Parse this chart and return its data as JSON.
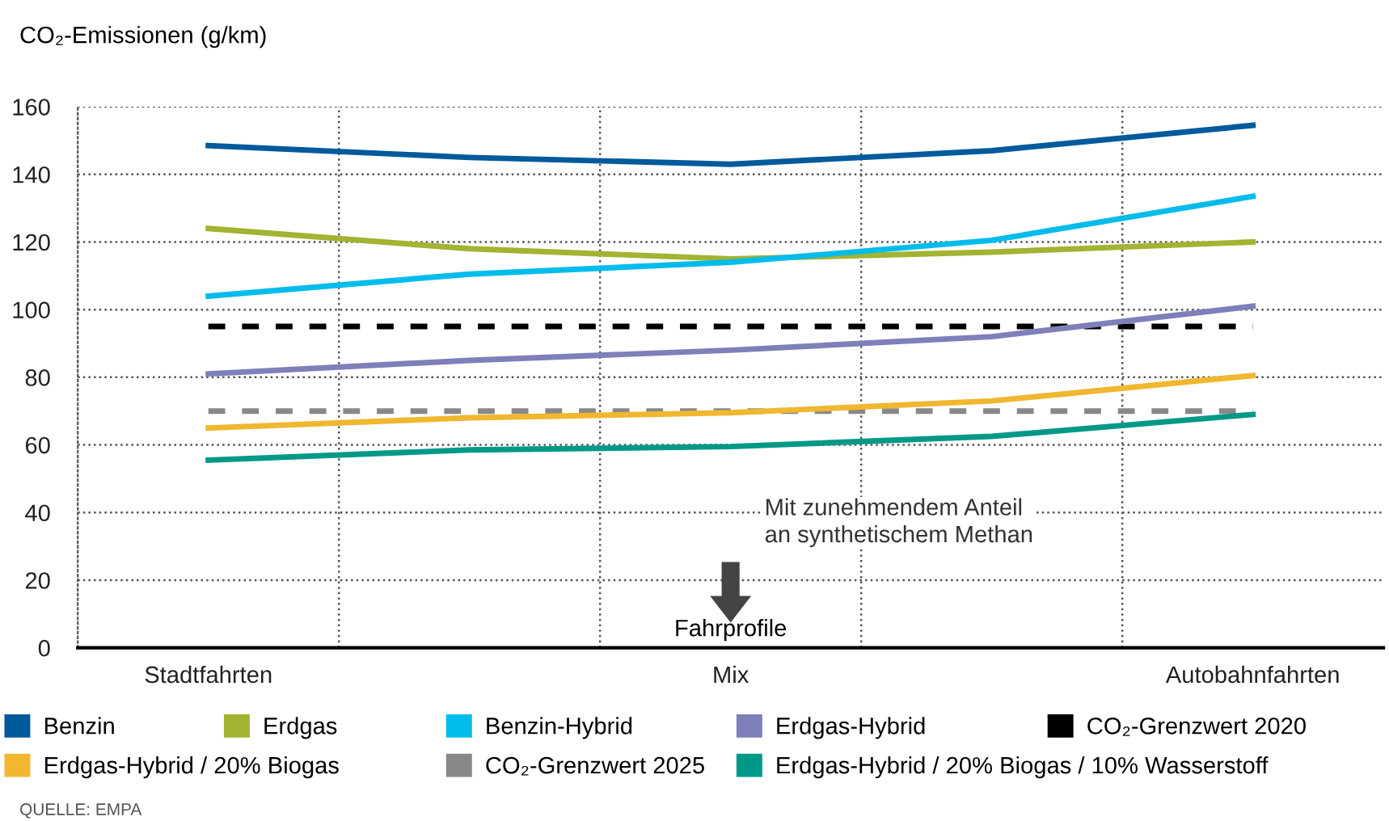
{
  "chart_data": {
    "type": "line",
    "ylabel": "CO₂-Emissionen (g/km)",
    "xlabel": "Fahrprofile",
    "categories": [
      "Stadtfahrten",
      null,
      "Mix",
      null,
      "Autobahnfahrten"
    ],
    "series": [
      {
        "name": "Benzin",
        "color": "#005a9c",
        "values": [
          148.5,
          145,
          143,
          147,
          154.5
        ]
      },
      {
        "name": "Erdgas",
        "color": "#a3b332",
        "values": [
          124,
          118,
          115,
          117,
          120
        ]
      },
      {
        "name": "Benzin-Hybrid",
        "color": "#00bcec",
        "values": [
          104,
          110.5,
          114,
          120.5,
          133.5
        ]
      },
      {
        "name": "Erdgas-Hybrid",
        "color": "#7f7fba",
        "values": [
          81,
          85,
          88,
          92,
          101
        ]
      },
      {
        "name": "Erdgas-Hybrid / 20% Biogas",
        "color": "#f0b72f",
        "values": [
          65,
          68,
          69.5,
          73,
          80.5
        ]
      },
      {
        "name": "Erdgas-Hybrid / 20% Biogas / 10% Wasserstoff",
        "color": "#009988",
        "values": [
          55.5,
          58.5,
          59.5,
          62.5,
          69
        ]
      }
    ],
    "ref_lines": [
      {
        "axis": "y",
        "value": 95,
        "label": "CO₂-Grenzwert 2020",
        "color": "#000000",
        "line_style": "dashed"
      },
      {
        "axis": "y",
        "value": 70,
        "label": "CO₂-Grenzwert 2025",
        "color": "#888888",
        "line_style": "dashed"
      }
    ],
    "ylim": [
      0,
      160
    ],
    "yticks": [
      0,
      20,
      40,
      60,
      80,
      100,
      120,
      140,
      160
    ],
    "grid": true,
    "legend": "bottom",
    "marker": "none",
    "line_style": "solid",
    "annotations": [
      "Mit zunehmendem Anteil\nan synthetischem Methan",
      "QUELLE: EMPA"
    ]
  }
}
